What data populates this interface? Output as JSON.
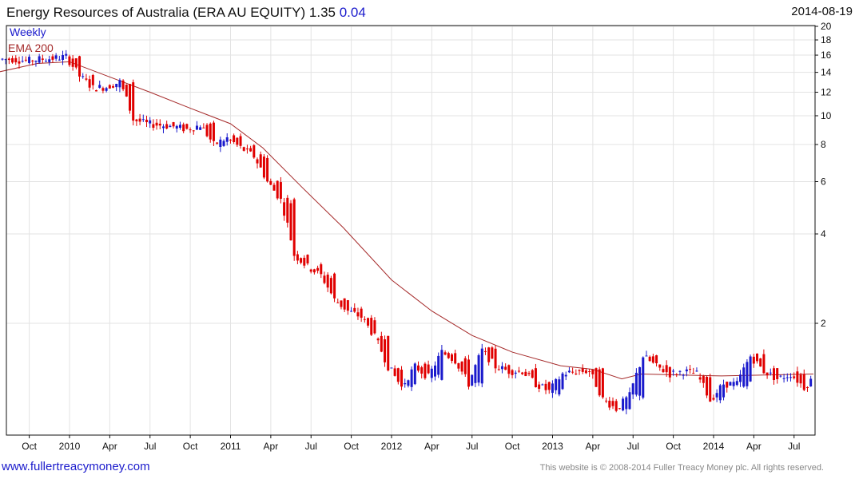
{
  "header": {
    "title": "Energy Resources of Australia (ERA AU EQUITY)",
    "price": "1.35",
    "change": "0.04",
    "date": "2014-08-19"
  },
  "footer": {
    "left": "www.fullertreacymoney.com",
    "right": "This website is © 2008-2014 Fuller Treacy Money plc. All rights reserved."
  },
  "colors": {
    "up": "#1a1acc",
    "down": "#e00000",
    "ema": "#a52a2a",
    "grid": "#e3e3e3"
  },
  "chart_data": {
    "type": "candlestick",
    "title": "Energy Resources of Australia (ERA AU EQUITY)",
    "legend": [
      "Weekly",
      "EMA 200"
    ],
    "yscale": "log",
    "ylim": [
      0.84,
      20
    ],
    "yticks": [
      20,
      18,
      16,
      14,
      12,
      10,
      8,
      6,
      4,
      2
    ],
    "ytick_labels": [
      "20",
      "18",
      "16",
      "14",
      "12",
      "10",
      "8",
      "6",
      "4",
      "2"
    ],
    "xticks": [
      {
        "t": 2009.75,
        "label": "Oct"
      },
      {
        "t": 2010,
        "label": "2010"
      },
      {
        "t": 2010.25,
        "label": "Apr"
      },
      {
        "t": 2010.5,
        "label": "Jul"
      },
      {
        "t": 2010.75,
        "label": "Oct"
      },
      {
        "t": 2011,
        "label": "2011"
      },
      {
        "t": 2011.25,
        "label": "Apr"
      },
      {
        "t": 2011.5,
        "label": "Jul"
      },
      {
        "t": 2011.75,
        "label": "Oct"
      },
      {
        "t": 2012,
        "label": "2012"
      },
      {
        "t": 2012.25,
        "label": "Apr"
      },
      {
        "t": 2012.5,
        "label": "Jul"
      },
      {
        "t": 2012.75,
        "label": "Oct"
      },
      {
        "t": 2013,
        "label": "2013"
      },
      {
        "t": 2013.25,
        "label": "Apr"
      },
      {
        "t": 2013.5,
        "label": "Jul"
      },
      {
        "t": 2013.75,
        "label": "Oct"
      },
      {
        "t": 2014,
        "label": "2014"
      },
      {
        "t": 2014.25,
        "label": "Apr"
      },
      {
        "t": 2014.5,
        "label": "Jul"
      }
    ],
    "monthly_start": 2009.583,
    "monthly_close": [
      15.5,
      15.3,
      15.5,
      15.6,
      15.8,
      13.6,
      12.4,
      12.5,
      13.0,
      9.7,
      9.4,
      9.3,
      9.2,
      9.0,
      9.3,
      8.0,
      8.4,
      7.8,
      7.3,
      6.0,
      5.2,
      3.4,
      3.1,
      2.9,
      2.4,
      2.2,
      2.1,
      1.8,
      1.43,
      1.22,
      1.43,
      1.32,
      1.6,
      1.5,
      1.25,
      1.62,
      1.43,
      1.38,
      1.38,
      1.25,
      1.18,
      1.35,
      1.38,
      1.38,
      1.11,
      1.03,
      1.14,
      1.55,
      1.43,
      1.35,
      1.38,
      1.35,
      1.1,
      1.25,
      1.25,
      1.55,
      1.38,
      1.3,
      1.35,
      1.22,
      1.35
    ],
    "ema200": [
      [
        2009.55,
        14.0
      ],
      [
        2009.8,
        15.0
      ],
      [
        2010.0,
        15.2
      ],
      [
        2010.5,
        12.0
      ],
      [
        2010.75,
        10.6
      ],
      [
        2011.0,
        9.4
      ],
      [
        2011.2,
        7.8
      ],
      [
        2011.45,
        5.7
      ],
      [
        2011.7,
        4.2
      ],
      [
        2012.0,
        2.8
      ],
      [
        2012.25,
        2.2
      ],
      [
        2012.5,
        1.82
      ],
      [
        2012.75,
        1.6
      ],
      [
        2013.05,
        1.44
      ],
      [
        2013.25,
        1.4
      ],
      [
        2013.43,
        1.3
      ],
      [
        2013.55,
        1.35
      ],
      [
        2014.05,
        1.33
      ],
      [
        2014.62,
        1.35
      ]
    ]
  }
}
